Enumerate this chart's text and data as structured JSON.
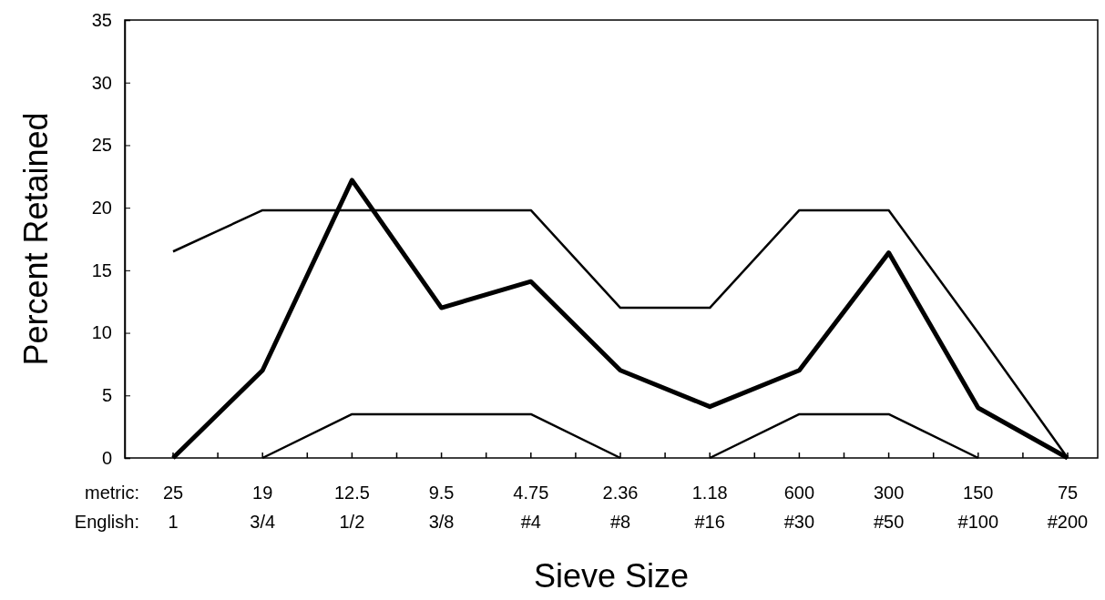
{
  "chart_data": {
    "type": "line",
    "xlabel": "Sieve Size",
    "ylabel": "Percent Retained",
    "categories": [
      "25\n1",
      "19\n3/4",
      "12.5\n1/2",
      "9.5\n3/8",
      "4.75\n#4",
      "2.36\n#8",
      "1.18\n#16",
      "600\n#30",
      "300\n#50",
      "150\n#100",
      "75\n#200"
    ],
    "annotations": [
      "metric:",
      "English:"
    ],
    "series": [
      {
        "color": "#000000",
        "values": [
          0,
          7,
          22.2,
          12,
          14.1,
          7,
          4.1,
          7,
          16.4,
          4,
          0
        ]
      },
      {
        "color": "#000000",
        "values": [
          16.5,
          19.8,
          19.8,
          19.8,
          19.8,
          12,
          12,
          19.8,
          19.8,
          10,
          0
        ]
      },
      {
        "color": "#000000",
        "values": [
          null,
          0,
          3.5,
          3.5,
          3.5,
          0,
          null,
          null,
          null,
          null,
          null
        ]
      },
      {
        "color": "#000000",
        "values": [
          null,
          null,
          null,
          null,
          null,
          null,
          0,
          3.5,
          3.5,
          0,
          null
        ]
      }
    ],
    "ylim": [
      0,
      35
    ],
    "yticks": [
      0,
      5,
      10,
      15,
      20,
      25,
      30,
      35
    ],
    "grid": false,
    "marker": "none",
    "line_style": "solid"
  }
}
